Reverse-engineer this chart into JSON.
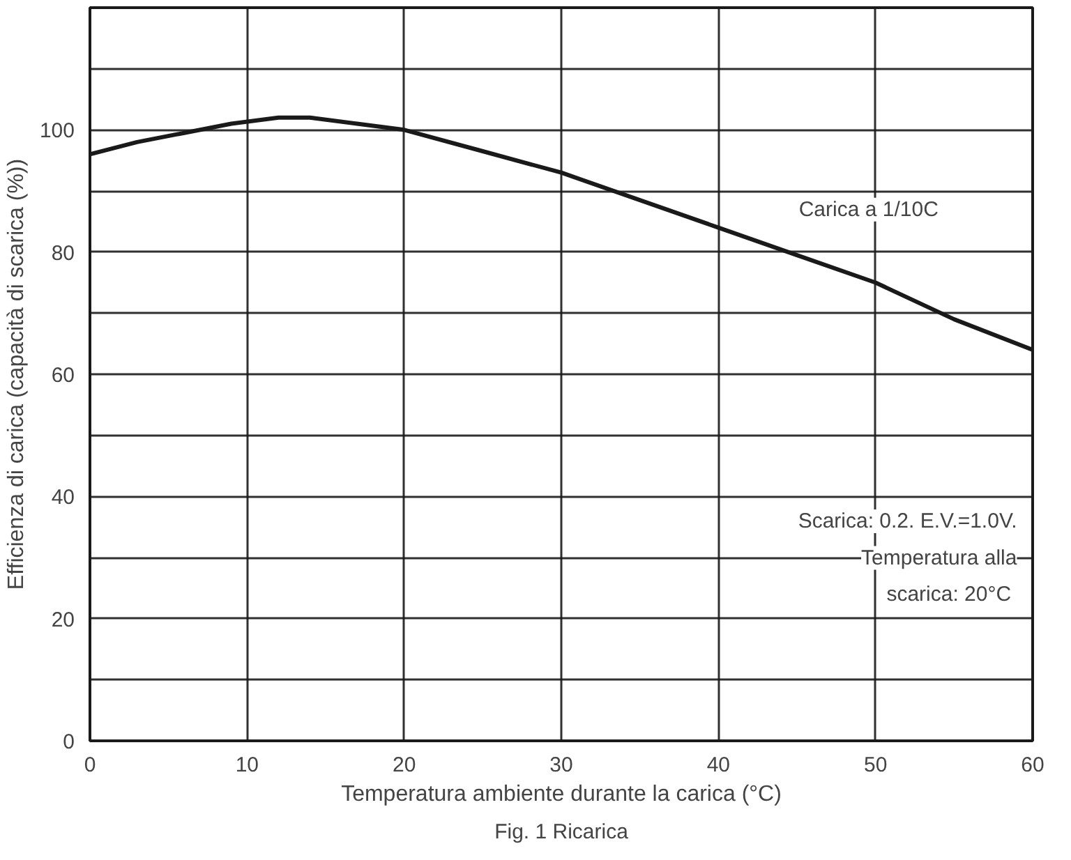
{
  "chart_data": {
    "type": "line",
    "xlabel": "Temperatura ambiente durante la carica (°C)",
    "ylabel": "Efficienza di carica (capacità di scarica (%))",
    "x": [
      0,
      3,
      6,
      9,
      12,
      14,
      17,
      20,
      25,
      30,
      35,
      40,
      45,
      50,
      55,
      60
    ],
    "series": [
      {
        "color": "#1a1a1a",
        "values": [
          96,
          98,
          99.5,
          101,
          102,
          102,
          101,
          100,
          96.5,
          93,
          88.5,
          84,
          79.5,
          75,
          69,
          64
        ]
      }
    ],
    "xlim": [
      0,
      60
    ],
    "xticks": [
      0,
      10,
      20,
      30,
      40,
      50,
      60
    ],
    "ylim": [
      0,
      120
    ],
    "yticks": [
      0,
      {
        "value": 10,
        "label": null
      },
      20,
      {
        "value": 30,
        "label": null
      },
      40,
      {
        "value": 50,
        "label": null
      },
      60,
      {
        "value": 70,
        "label": null
      },
      80,
      {
        "value": 90,
        "label": null
      },
      100,
      {
        "value": 110,
        "label": null
      }
    ],
    "grid": true,
    "marker": "none",
    "line_style": "solid",
    "annotations": [
      "Carica a 1/10C",
      "Scarica: 0.2. E.V.=1.0V.\nTemperatura alla\n scarica: 20°C",
      "Fig. 1 Ricarica"
    ]
  }
}
